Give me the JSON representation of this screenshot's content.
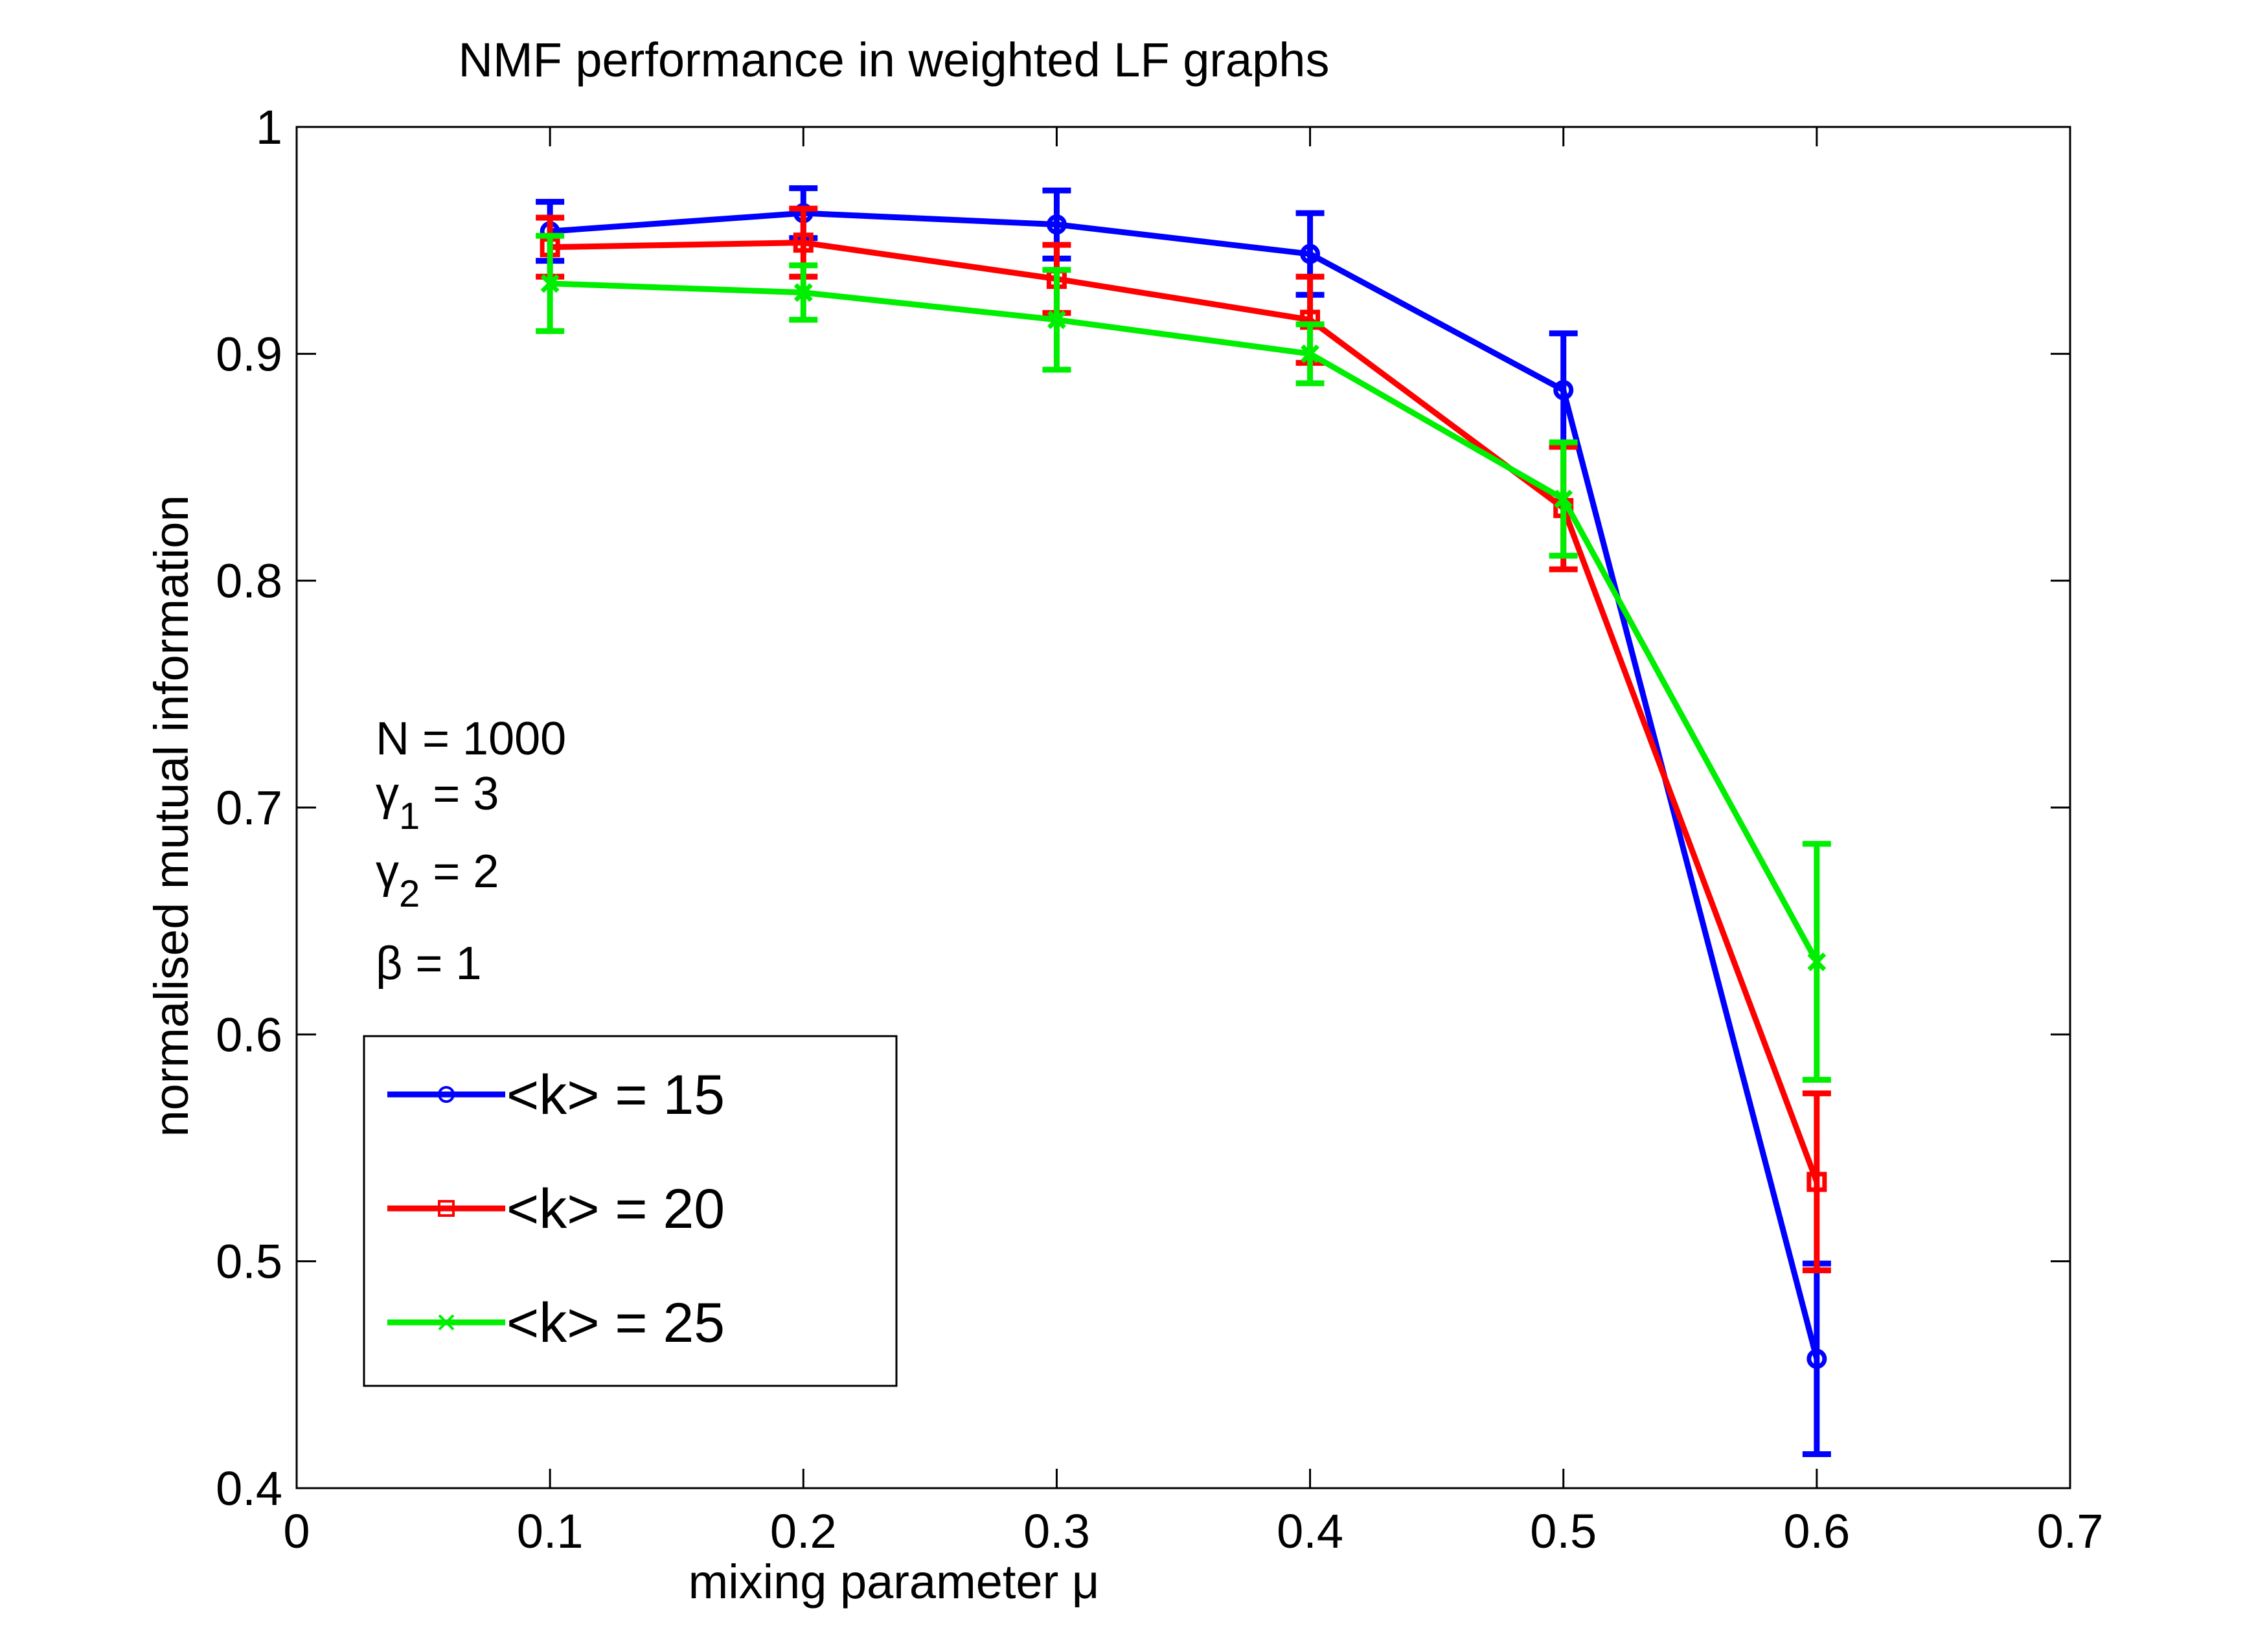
{
  "chart_data": {
    "type": "line",
    "title": "NMF performance in weighted LF graphs",
    "xlabel": "mixing parameter μ",
    "ylabel": "normalised mutual information",
    "xlim": [
      0,
      0.7
    ],
    "ylim": [
      0.4,
      1.0
    ],
    "xticks": [
      0,
      0.1,
      0.2,
      0.3,
      0.4,
      0.5,
      0.6,
      0.7
    ],
    "xtick_labels": [
      "0",
      "0.1",
      "0.2",
      "0.3",
      "0.4",
      "0.5",
      "0.6",
      "0.7"
    ],
    "yticks": [
      0.4,
      0.5,
      0.6,
      0.7,
      0.8,
      0.9,
      1.0
    ],
    "ytick_labels": [
      "0.4",
      "0.5",
      "0.6",
      "0.7",
      "0.8",
      "0.9",
      "1"
    ],
    "grid": false,
    "legend_position": "bottom-left",
    "annotation": {
      "n_line": "N = 1000",
      "gamma1_symbol": "γ",
      "gamma1_sub": "1",
      "gamma1_value": " = 3",
      "gamma2_symbol": "γ",
      "gamma2_sub": "2",
      "gamma2_value": " = 2",
      "beta_line": "β = 1"
    },
    "x": [
      0.1,
      0.2,
      0.3,
      0.4,
      0.5,
      0.6
    ],
    "series": [
      {
        "name": "<k> = 15",
        "color": "#0000ff",
        "marker": "circle",
        "values": [
          0.954,
          0.962,
          0.957,
          0.944,
          0.884,
          0.457
        ],
        "errors": [
          0.013,
          0.011,
          0.015,
          0.018,
          0.025,
          0.042
        ]
      },
      {
        "name": "<k> = 20",
        "color": "#ff0000",
        "marker": "square",
        "values": [
          0.947,
          0.949,
          0.933,
          0.915,
          0.832,
          0.535
        ],
        "errors": [
          0.013,
          0.015,
          0.015,
          0.019,
          0.027,
          0.039
        ]
      },
      {
        "name": "<k> = 25",
        "color": "#00ee00",
        "marker": "x",
        "values": [
          0.931,
          0.927,
          0.915,
          0.9,
          0.836,
          0.632
        ],
        "errors": [
          0.021,
          0.012,
          0.022,
          0.013,
          0.025,
          0.052
        ]
      }
    ]
  }
}
